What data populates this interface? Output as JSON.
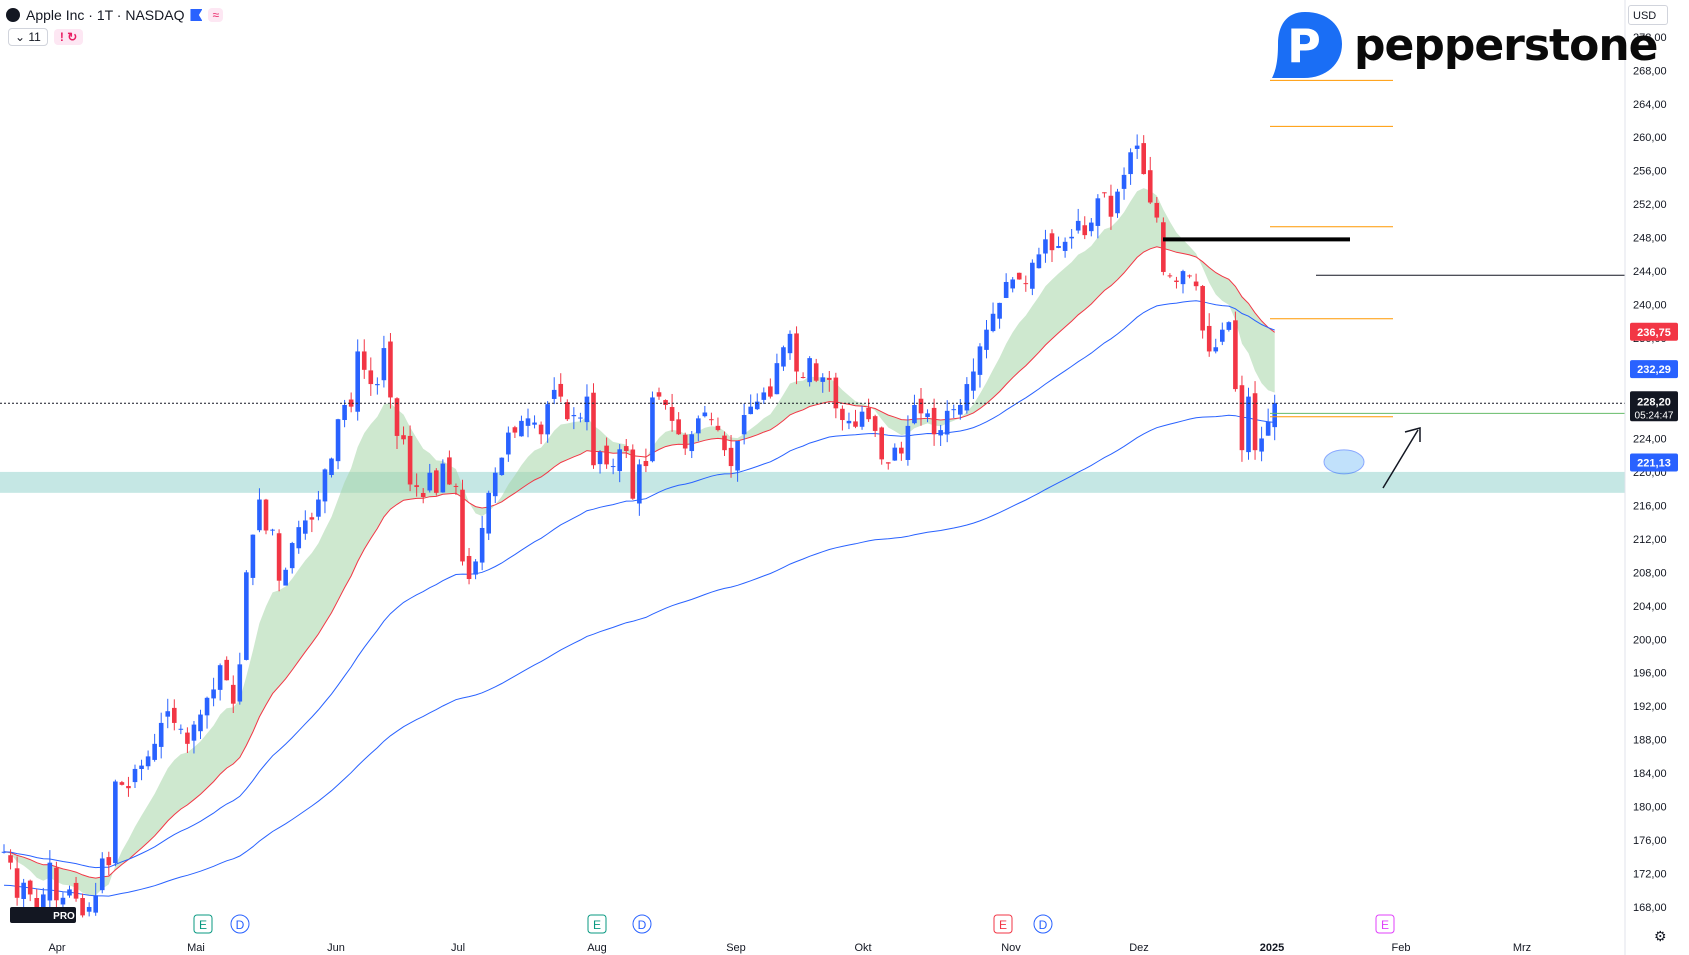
{
  "header": {
    "symbol_title": "Apple Inc · 1T · NASDAQ",
    "wave_icon": "≈",
    "indicators_count": "11",
    "alert_badge": "!",
    "currency": "USD"
  },
  "brand": {
    "name": "pepperstone",
    "logo": "P"
  },
  "tv_badge": "PRO",
  "chart_data": {
    "type": "candlestick",
    "ylim": [
      166,
      274
    ],
    "y_ticks": [
      "168,00",
      "172,00",
      "176,00",
      "180,00",
      "184,00",
      "188,00",
      "192,00",
      "196,00",
      "200,00",
      "204,00",
      "208,00",
      "212,00",
      "216,00",
      "220,00",
      "224,00",
      "228,00",
      "232,00",
      "236,00",
      "240,00",
      "244,00",
      "248,00",
      "252,00",
      "256,00",
      "260,00",
      "264,00",
      "268,00",
      "272,00"
    ],
    "x_ticks": [
      "Apr",
      "Mai",
      "Jun",
      "Jul",
      "Aug",
      "Sep",
      "Okt",
      "Nov",
      "Dez",
      "2025",
      "Feb",
      "Mrz"
    ],
    "current_price": "228,20",
    "countdown": "05:24:47",
    "price_labels": [
      {
        "text": "236,75",
        "value": 236.75,
        "color": "#f23645"
      },
      {
        "text": "232,29",
        "value": 232.29,
        "color": "#2962ff"
      },
      {
        "text": "221,13",
        "value": 221.13,
        "color": "#2962ff"
      }
    ],
    "support_zone": [
      217.5,
      220.0
    ],
    "closes": [
      174.6,
      173.3,
      169.1,
      170.9,
      169.5,
      167.8,
      169.5,
      173.3,
      168.8,
      169.1,
      170.1,
      169.0,
      167.0,
      168.0,
      169.4,
      173.8,
      173.0,
      183.0,
      182.6,
      182.2,
      184.5,
      184.9,
      186.0,
      187.5,
      190.0,
      191.4,
      190.0,
      189.3,
      187.5,
      189.8,
      191.0,
      193.0,
      194.0,
      196.9,
      195.1,
      192.3,
      197.0,
      208.0,
      212.5,
      216.7,
      213.0,
      213.1,
      207.0,
      208.3,
      211.5,
      213.4,
      214.2,
      214.3,
      216.7,
      220.3,
      221.6,
      226.3,
      228.0,
      227.8,
      234.4,
      232.2,
      230.5,
      230.5,
      234.8,
      228.9,
      224.3,
      223.9,
      218.5,
      218.2,
      217.0,
      219.9,
      217.5,
      221.0,
      218.5,
      218.3,
      209.3,
      207.2,
      209.3,
      213.3,
      217.5,
      219.9,
      221.7,
      224.7,
      224.7,
      226.1,
      226.4,
      225.9,
      224.5,
      228.1,
      229.8,
      229.0,
      226.3,
      226.8,
      226.5,
      229.0,
      220.8,
      222.4,
      220.9,
      220.7,
      222.7,
      222.5,
      216.8,
      220.9,
      220.7,
      228.9,
      229.0,
      228.0,
      226.1,
      224.5,
      222.8,
      224.5,
      226.4,
      227.1,
      226.3,
      225.0,
      222.6,
      220.7,
      223.7,
      226.8,
      227.8,
      228.4,
      229.5,
      229.0,
      233.0,
      234.9,
      236.5,
      232.0,
      231.3,
      233.6,
      230.9,
      231.3,
      231.0,
      227.6,
      226.2,
      226.1,
      225.4,
      227.2,
      226.3,
      224.9,
      221.5,
      221.0,
      222.9,
      222.2,
      225.5,
      228.0,
      227.0,
      227.0,
      224.5,
      225.0,
      227.3,
      227.5,
      228.0,
      230.5,
      232.0,
      235.0,
      237.0,
      238.9,
      240.2,
      242.7,
      243.0,
      243.0,
      242.5,
      245.0,
      246.0,
      247.8,
      246.5,
      247.0,
      247.5,
      248.1,
      250.0,
      248.3,
      249.8,
      252.7,
      253.3,
      250.5,
      253.5,
      255.5,
      258.2,
      259.0,
      255.6,
      252.2,
      250.4,
      243.9,
      243.4,
      242.7,
      244.0,
      243.4,
      242.2,
      236.9,
      234.4,
      234.9,
      237.0,
      237.9,
      229.9,
      222.6,
      229.0,
      222.6,
      224.0,
      226.0,
      228.2
    ]
  }
}
